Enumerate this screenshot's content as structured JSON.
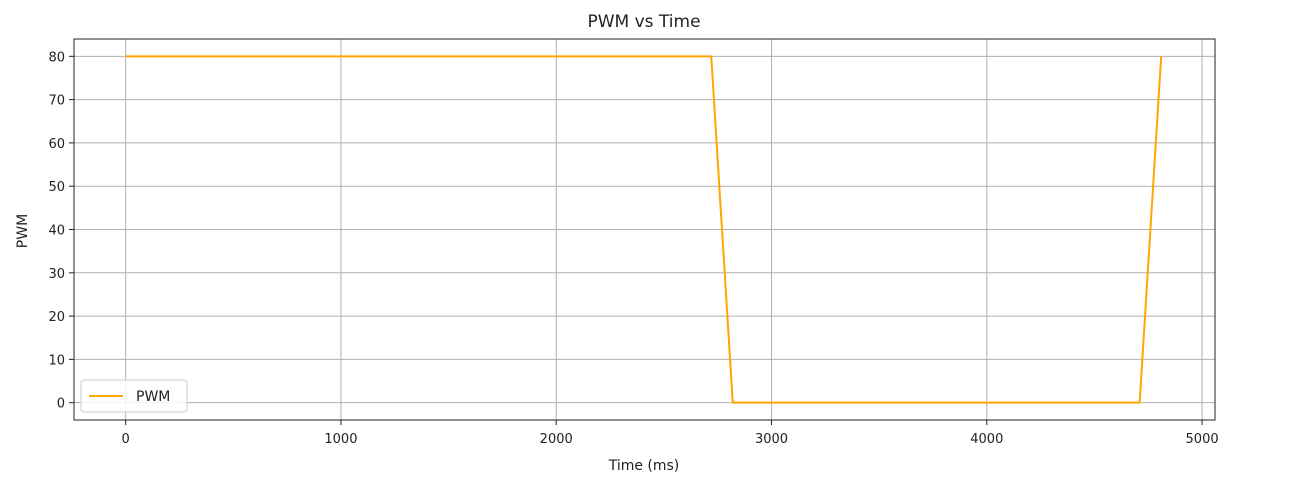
{
  "chart_data": {
    "type": "line",
    "title": "PWM vs Time",
    "xlabel": "Time (ms)",
    "ylabel": "PWM",
    "xlim": [
      -240,
      5060
    ],
    "ylim": [
      -4,
      84
    ],
    "xticks": [
      0,
      1000,
      2000,
      3000,
      4000,
      5000
    ],
    "yticks": [
      0,
      10,
      20,
      30,
      40,
      50,
      60,
      70,
      80
    ],
    "grid": true,
    "legend": "lower-left",
    "series": [
      {
        "name": "PWM",
        "color": "#ffa500",
        "x": [
          0,
          2720,
          2820,
          4710,
          4810
        ],
        "y": [
          80,
          80,
          0,
          0,
          80
        ]
      }
    ]
  }
}
